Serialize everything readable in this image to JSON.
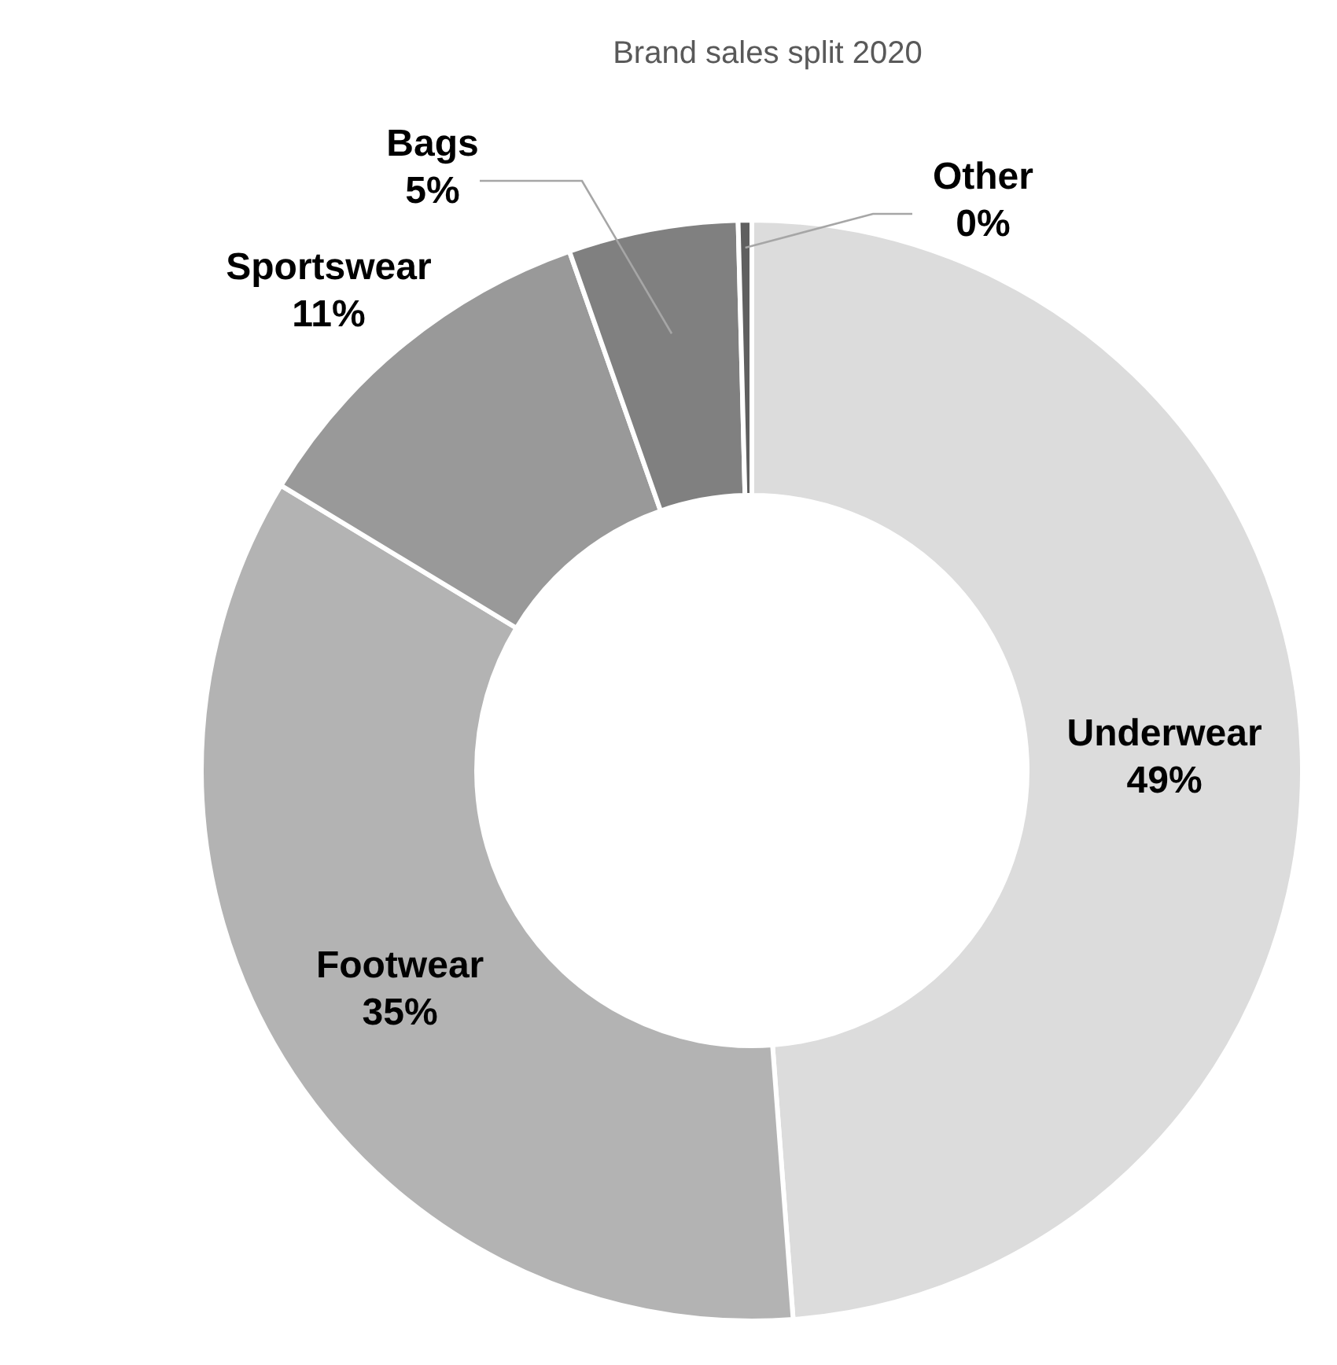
{
  "chart_data": {
    "type": "donut",
    "title": "Brand sales split 2020",
    "categories": [
      "Underwear",
      "Footwear",
      "Sportswear",
      "Bags",
      "Other"
    ],
    "values": [
      49,
      35,
      11,
      5,
      0.4
    ],
    "value_labels": [
      "49%",
      "35%",
      "11%",
      "5%",
      "0%"
    ],
    "colors": [
      "#dcdcdc",
      "#b3b3b3",
      "#999999",
      "#808080",
      "#5f5f5f"
    ]
  }
}
